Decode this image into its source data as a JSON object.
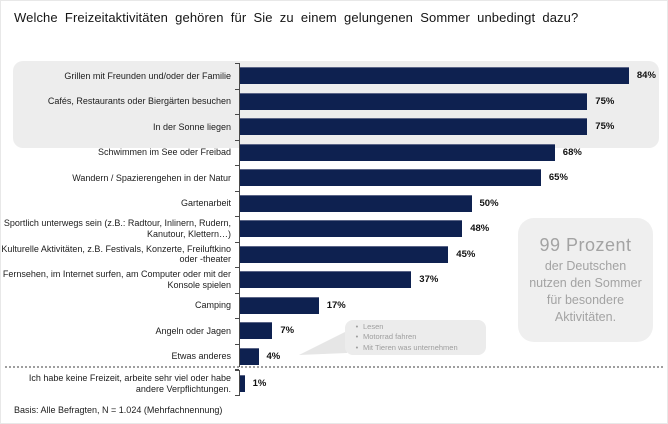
{
  "title": "Welche Freizeitaktivitäten  gehören  für Sie zu einem  gelungenen  Sommer unbedingt  dazu?",
  "chart_data": {
    "type": "bar",
    "orientation": "horizontal",
    "unit": "%",
    "xlim": [
      0,
      100
    ],
    "grid": false,
    "categories": [
      "Grillen mit Freunden und/oder der Familie",
      "Cafés, Restaurants oder Biergärten besuchen",
      "In der Sonne liegen",
      "Schwimmen im See oder Freibad",
      "Wandern / Spazierengehen in der Natur",
      "Gartenarbeit",
      "Sportlich unterwegs sein (z.B.: Radtour, Inlinern, Rudern, Kanutour, Klettern…)",
      "Kulturelle Aktivitäten, z.B. Festivals, Konzerte, Freiluftkino oder -theater",
      "Fernsehen, im Internet surfen, am Computer oder mit der Konsole spielen",
      "Camping",
      "Angeln oder Jagen",
      "Etwas anderes",
      "Ich habe keine Freizeit, arbeite sehr viel oder habe andere Verpflichtungen."
    ],
    "values": [
      84,
      75,
      75,
      68,
      65,
      50,
      48,
      45,
      37,
      17,
      7,
      4,
      1
    ],
    "value_labels": [
      "84%",
      "75%",
      "75%",
      "68%",
      "65%",
      "50%",
      "48%",
      "45%",
      "37%",
      "17%",
      "7%",
      "4%",
      "1%"
    ],
    "bar_color": "#0e2150",
    "highlighted_top3": true,
    "separator_before_last": "dotted line"
  },
  "insight_callout": {
    "headline": "99 Prozent",
    "body": "der Deutschen nutzen den Sommer für besondere Aktivitäten."
  },
  "annotation": {
    "target": "Etwas anderes",
    "items": [
      "Lesen",
      "Motorrad fahren",
      "Mit Tieren was unternehmen"
    ]
  },
  "footer": "Basis: Alle Befragten, N = 1.024 (Mehrfachnennung)",
  "colors": {
    "bar": "#0e2150",
    "highlight_bg": "#ededed",
    "callout_text": "#a3a3a3",
    "axis": "#4a4a4a"
  }
}
